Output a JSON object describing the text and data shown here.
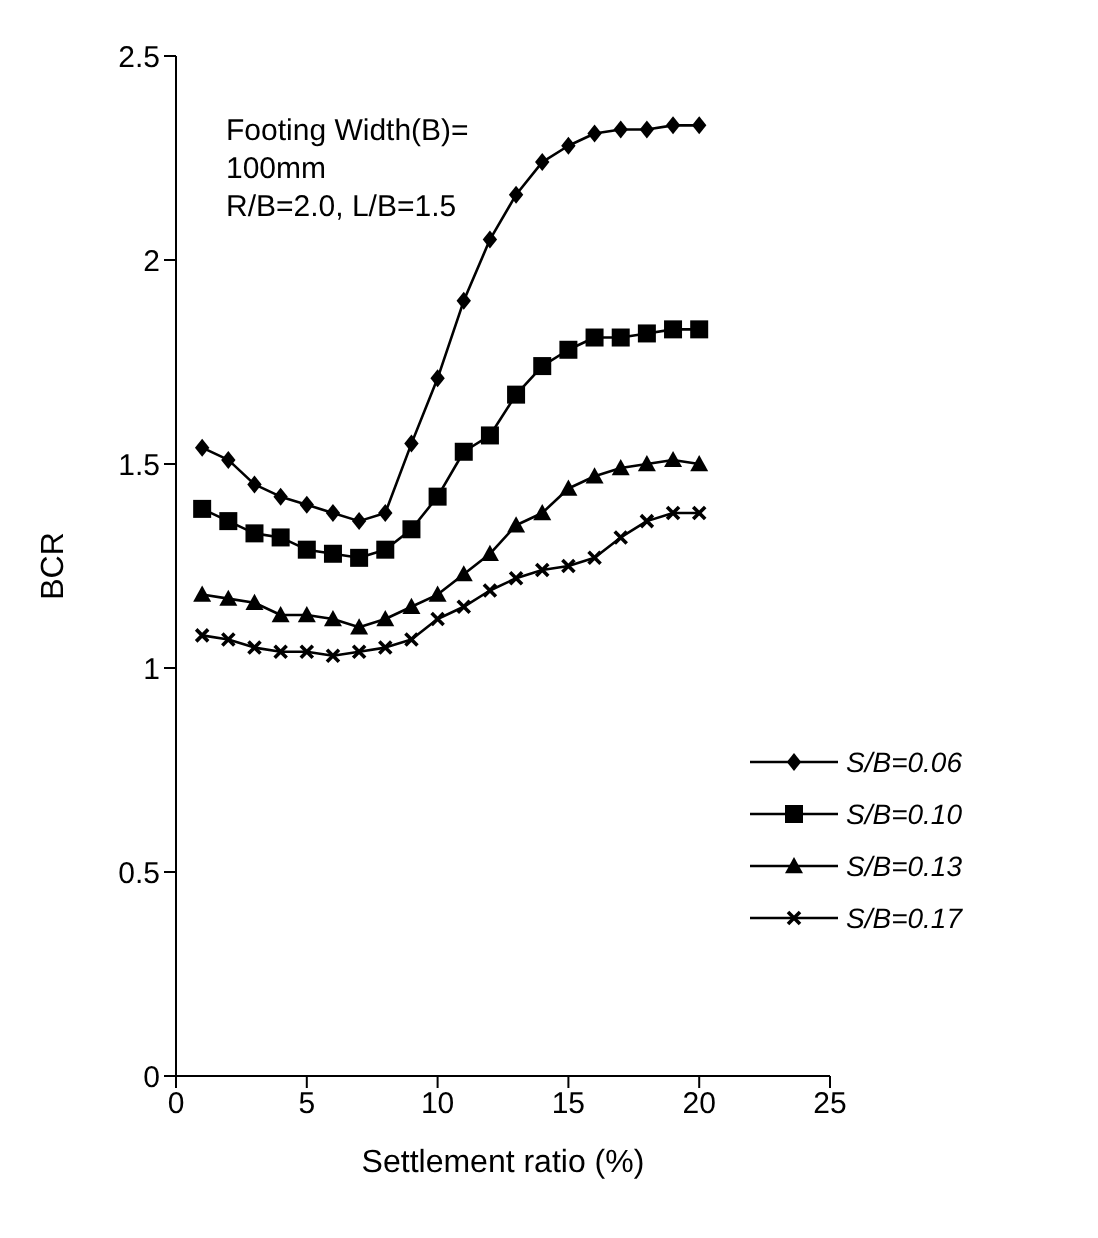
{
  "chart_data": {
    "type": "line",
    "xlabel": "Settlement ratio (%)",
    "ylabel": "BCR",
    "annotations": [
      "Footing Width(B)=\n100mm\nR/B=2.0, L/B=1.5"
    ],
    "x": [
      1,
      2,
      3,
      4,
      5,
      6,
      7,
      8,
      9,
      10,
      11,
      12,
      13,
      14,
      15,
      16,
      17,
      18,
      19,
      20
    ],
    "xlim": [
      0,
      25
    ],
    "xticks": [
      0,
      5,
      10,
      15,
      20,
      25
    ],
    "ylim": [
      0,
      2.5
    ],
    "yticks": [
      0,
      0.5,
      1,
      1.5,
      2,
      2.5
    ],
    "grid": false,
    "legend": "right",
    "line_style": "solid",
    "series": [
      {
        "name": "S/B=0.06",
        "color": "#000000",
        "marker": "diamond",
        "values": [
          1.54,
          1.51,
          1.45,
          1.42,
          1.4,
          1.38,
          1.36,
          1.38,
          1.55,
          1.71,
          1.9,
          2.05,
          2.16,
          2.24,
          2.28,
          2.31,
          2.32,
          2.32,
          2.33,
          2.33
        ]
      },
      {
        "name": "S/B=0.10",
        "color": "#000000",
        "marker": "square",
        "values": [
          1.39,
          1.36,
          1.33,
          1.32,
          1.29,
          1.28,
          1.27,
          1.29,
          1.34,
          1.42,
          1.53,
          1.57,
          1.67,
          1.74,
          1.78,
          1.81,
          1.81,
          1.82,
          1.83,
          1.83
        ]
      },
      {
        "name": "S/B=0.13",
        "color": "#000000",
        "marker": "triangle",
        "values": [
          1.18,
          1.17,
          1.16,
          1.13,
          1.13,
          1.12,
          1.1,
          1.12,
          1.15,
          1.18,
          1.23,
          1.28,
          1.35,
          1.38,
          1.44,
          1.47,
          1.49,
          1.5,
          1.51,
          1.5
        ]
      },
      {
        "name": "S/B=0.17",
        "color": "#000000",
        "marker": "cross",
        "values": [
          1.08,
          1.07,
          1.05,
          1.04,
          1.04,
          1.03,
          1.04,
          1.05,
          1.07,
          1.12,
          1.15,
          1.19,
          1.22,
          1.24,
          1.25,
          1.27,
          1.32,
          1.36,
          1.38,
          1.38
        ]
      }
    ]
  }
}
